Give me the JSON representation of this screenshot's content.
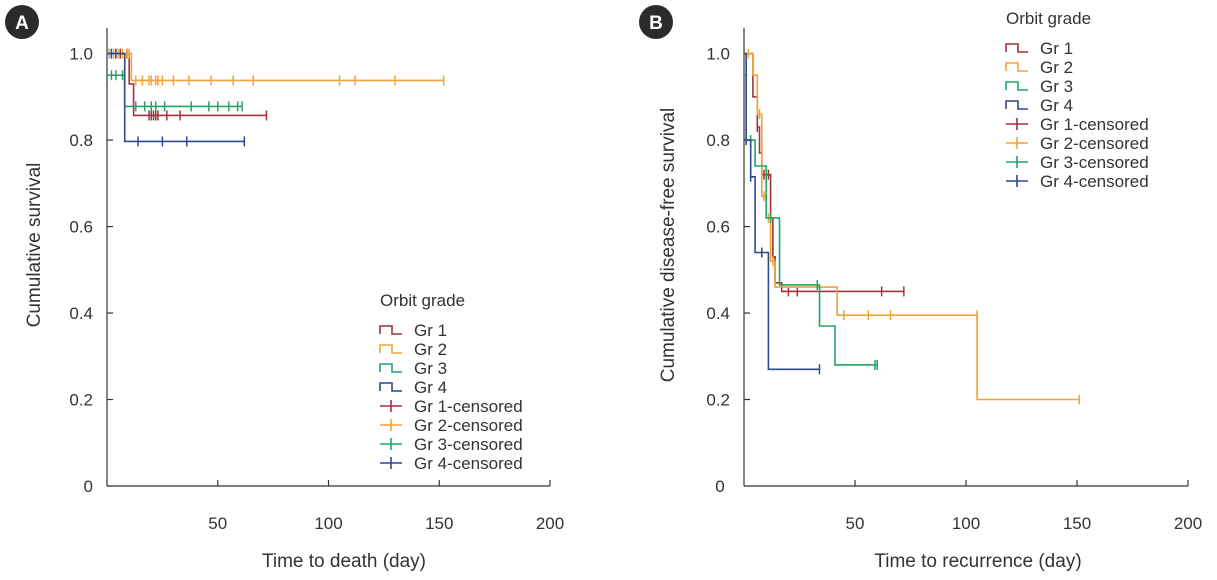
{
  "colors": {
    "gr1": "#a3323e",
    "gr2": "#f0a434",
    "gr3": "#24a36b",
    "gr4": "#2f4a8a",
    "axis": "#333333",
    "badge": "#2b2b2b"
  },
  "chart_data": [
    {
      "type": "line",
      "subtype": "kaplan-meier",
      "panel_label": "A",
      "xlabel": "Time to death (day)",
      "ylabel": "Cumulative survival",
      "xlim": [
        0,
        200
      ],
      "ylim": [
        0,
        1.05
      ],
      "xticks": [
        50,
        100,
        150,
        200
      ],
      "yticks": [
        0,
        0.2,
        0.4,
        0.6,
        0.8,
        1.0
      ],
      "ytick_labels": [
        "0",
        "0.2",
        "0.4",
        "0.6",
        "0.8",
        "1.0"
      ],
      "legend_title": "Orbit grade",
      "legend_entries": [
        "Gr 1",
        "Gr 2",
        "Gr 3",
        "Gr 4",
        "Gr 1-censored",
        "Gr 2-censored",
        "Gr 3-censored",
        "Gr 4-censored"
      ],
      "series": [
        {
          "name": "Gr 1",
          "color_key": "gr1",
          "steps": [
            [
              0,
              1.0
            ],
            [
              10,
              1.0
            ],
            [
              10,
              0.93
            ],
            [
              12,
              0.93
            ],
            [
              12,
              0.857
            ],
            [
              72,
              0.857
            ]
          ],
          "censored": [
            [
              6,
              1.0
            ],
            [
              9,
              1.0
            ],
            [
              19,
              0.857
            ],
            [
              20,
              0.857
            ],
            [
              21,
              0.857
            ],
            [
              22,
              0.857
            ],
            [
              23,
              0.857
            ],
            [
              27,
              0.857
            ],
            [
              33,
              0.857
            ],
            [
              72,
              0.857
            ]
          ]
        },
        {
          "name": "Gr 2",
          "color_key": "gr2",
          "steps": [
            [
              0,
              1.0
            ],
            [
              11,
              1.0
            ],
            [
              11,
              0.938
            ],
            [
              152,
              0.938
            ]
          ],
          "censored": [
            [
              1,
              1.0
            ],
            [
              3,
              1.0
            ],
            [
              5,
              1.0
            ],
            [
              7,
              1.0
            ],
            [
              9,
              1.0
            ],
            [
              10,
              1.0
            ],
            [
              13,
              0.938
            ],
            [
              16,
              0.938
            ],
            [
              19,
              0.938
            ],
            [
              20,
              0.938
            ],
            [
              22,
              0.938
            ],
            [
              23,
              0.938
            ],
            [
              25,
              0.938
            ],
            [
              30,
              0.938
            ],
            [
              37,
              0.938
            ],
            [
              47,
              0.938
            ],
            [
              57,
              0.938
            ],
            [
              66,
              0.938
            ],
            [
              105,
              0.938
            ],
            [
              112,
              0.938
            ],
            [
              130,
              0.938
            ],
            [
              152,
              0.938
            ]
          ]
        },
        {
          "name": "Gr 3",
          "color_key": "gr3",
          "steps": [
            [
              0,
              0.95
            ],
            [
              8,
              0.95
            ],
            [
              8,
              0.878
            ],
            [
              61,
              0.878
            ]
          ],
          "censored": [
            [
              2,
              0.95
            ],
            [
              4,
              0.95
            ],
            [
              7,
              0.95
            ],
            [
              13,
              0.878
            ],
            [
              17,
              0.878
            ],
            [
              20,
              0.878
            ],
            [
              22,
              0.878
            ],
            [
              26,
              0.878
            ],
            [
              38,
              0.878
            ],
            [
              46,
              0.878
            ],
            [
              50,
              0.878
            ],
            [
              55,
              0.878
            ],
            [
              59,
              0.878
            ],
            [
              61,
              0.878
            ]
          ]
        },
        {
          "name": "Gr 4",
          "color_key": "gr4",
          "steps": [
            [
              0,
              1.0
            ],
            [
              8,
              1.0
            ],
            [
              8,
              0.797
            ],
            [
              62,
              0.797
            ]
          ],
          "censored": [
            [
              2,
              1.0
            ],
            [
              4,
              1.0
            ],
            [
              14,
              0.797
            ],
            [
              25,
              0.797
            ],
            [
              36,
              0.797
            ],
            [
              62,
              0.797
            ]
          ]
        }
      ]
    },
    {
      "type": "line",
      "subtype": "kaplan-meier",
      "panel_label": "B",
      "xlabel": "Time to recurrence (day)",
      "ylabel": "Cumulative disease-free survival",
      "xlim": [
        0,
        200
      ],
      "ylim": [
        0,
        1.05
      ],
      "xticks": [
        50,
        100,
        150,
        200
      ],
      "yticks": [
        0.2,
        0.4,
        0.6,
        0.8,
        1.0
      ],
      "ytick_labels": [
        "0.2",
        "0.4",
        "0.6",
        "0.8",
        "1.0"
      ],
      "xtick_zero_label": "0",
      "legend_title": "Orbit grade",
      "legend_entries": [
        "Gr 1",
        "Gr 2",
        "Gr 3",
        "Gr 4",
        "Gr 1-censored",
        "Gr 2-censored",
        "Gr 3-censored",
        "Gr 4-censored"
      ],
      "series": [
        {
          "name": "Gr 1",
          "color_key": "gr1",
          "steps": [
            [
              0,
              1.0
            ],
            [
              4,
              1.0
            ],
            [
              4,
              0.9
            ],
            [
              6,
              0.9
            ],
            [
              6,
              0.83
            ],
            [
              7,
              0.83
            ],
            [
              7,
              0.77
            ],
            [
              8,
              0.77
            ],
            [
              8,
              0.72
            ],
            [
              12,
              0.72
            ],
            [
              12,
              0.62
            ],
            [
              13,
              0.62
            ],
            [
              13,
              0.53
            ],
            [
              14,
              0.53
            ],
            [
              14,
              0.47
            ],
            [
              17,
              0.47
            ],
            [
              17,
              0.45
            ],
            [
              72,
              0.45
            ]
          ],
          "censored": [
            [
              6,
              0.83
            ],
            [
              9,
              0.72
            ],
            [
              11,
              0.72
            ],
            [
              20,
              0.45
            ],
            [
              24,
              0.45
            ],
            [
              62,
              0.45
            ],
            [
              72,
              0.45
            ]
          ]
        },
        {
          "name": "Gr 2",
          "color_key": "gr2",
          "steps": [
            [
              0,
              1.0
            ],
            [
              4,
              1.0
            ],
            [
              4,
              0.95
            ],
            [
              6,
              0.95
            ],
            [
              6,
              0.86
            ],
            [
              8,
              0.86
            ],
            [
              8,
              0.67
            ],
            [
              10,
              0.67
            ],
            [
              10,
              0.62
            ],
            [
              12,
              0.62
            ],
            [
              12,
              0.52
            ],
            [
              14,
              0.52
            ],
            [
              14,
              0.46
            ],
            [
              42,
              0.46
            ],
            [
              42,
              0.395
            ],
            [
              105,
              0.395
            ],
            [
              105,
              0.2
            ],
            [
              151,
              0.2
            ]
          ],
          "censored": [
            [
              2,
              1.0
            ],
            [
              7,
              0.86
            ],
            [
              9,
              0.67
            ],
            [
              11,
              0.62
            ],
            [
              13,
              0.52
            ],
            [
              45,
              0.395
            ],
            [
              56,
              0.395
            ],
            [
              66,
              0.395
            ],
            [
              105,
              0.395
            ],
            [
              151,
              0.2
            ]
          ]
        },
        {
          "name": "Gr 3",
          "color_key": "gr3",
          "steps": [
            [
              0,
              0.95
            ],
            [
              1,
              0.95
            ],
            [
              1,
              0.8
            ],
            [
              5,
              0.8
            ],
            [
              5,
              0.74
            ],
            [
              10,
              0.74
            ],
            [
              10,
              0.62
            ],
            [
              16,
              0.62
            ],
            [
              16,
              0.465
            ],
            [
              34,
              0.465
            ],
            [
              34,
              0.37
            ],
            [
              41,
              0.37
            ],
            [
              41,
              0.28
            ],
            [
              60,
              0.28
            ]
          ],
          "censored": [
            [
              3,
              0.8
            ],
            [
              12,
              0.62
            ],
            [
              33,
              0.465
            ],
            [
              59,
              0.28
            ],
            [
              60,
              0.28
            ]
          ]
        },
        {
          "name": "Gr 4",
          "color_key": "gr4",
          "steps": [
            [
              0,
              1.0
            ],
            [
              1,
              1.0
            ],
            [
              1,
              0.8
            ],
            [
              3,
              0.8
            ],
            [
              3,
              0.715
            ],
            [
              5,
              0.715
            ],
            [
              5,
              0.54
            ],
            [
              11,
              0.54
            ],
            [
              11,
              0.27
            ],
            [
              34,
              0.27
            ]
          ],
          "censored": [
            [
              1,
              0.8
            ],
            [
              3,
              0.715
            ],
            [
              8,
              0.54
            ],
            [
              34,
              0.27
            ]
          ]
        }
      ]
    }
  ]
}
